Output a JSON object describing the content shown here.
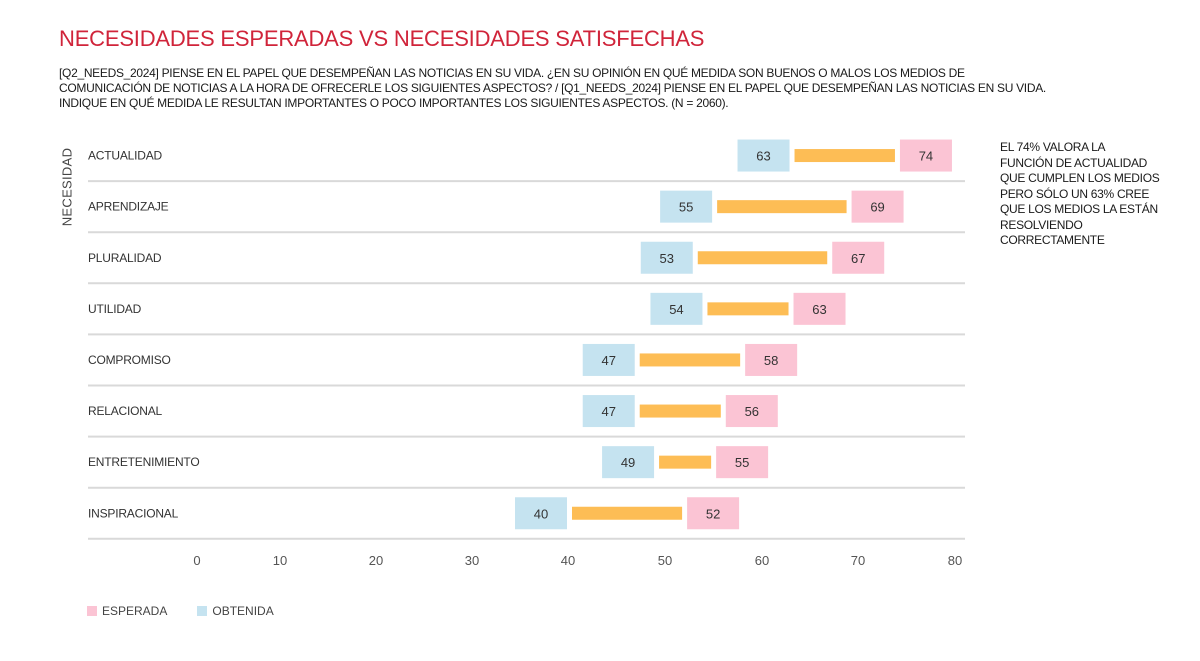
{
  "chart_data": {
    "type": "bar",
    "subtype": "dumbbell",
    "title": "NECESIDADES ESPERADAS VS NECESIDADES SATISFECHAS",
    "subtitle_lines": [
      "[Q2_NEEDS_2024] PIENSE EN EL PAPEL QUE DESEMPEÑAN LAS NOTICIAS EN SU VIDA. ¿EN SU OPINIÓN EN QUÉ MEDIDA SON BUENOS O MALOS LOS MEDIOS DE",
      "COMUNICACIÓN DE NOTICIAS A LA HORA DE OFRECERLE LOS SIGUIENTES ASPECTOS? / [Q1_NEEDS_2024] PIENSE EN EL PAPEL QUE DESEMPEÑAN LAS NOTICIAS EN SU VIDA.",
      "INDIQUE EN QUÉ MEDIDA LE RESULTAN IMPORTANTES O POCO IMPORTANTES LOS SIGUIENTES ASPECTOS. (N = 2060)."
    ],
    "ylabel": "NECESIDAD",
    "xlabel": "",
    "xlim": [
      0,
      80
    ],
    "xticks": [
      "0",
      "10",
      "20",
      "30",
      "40",
      "50",
      "60",
      "70",
      "80"
    ],
    "categories": [
      "ACTUALIDAD",
      "APRENDIZAJE",
      "PLURALIDAD",
      "UTILIDAD",
      "COMPROMISO",
      "RELACIONAL",
      "ENTRETENIMIENTO",
      "INSPIRACIONAL"
    ],
    "series": [
      {
        "name": "ESPERADA",
        "color": "#fbc4d4",
        "values": [
          74,
          69,
          67,
          63,
          58,
          56,
          55,
          52
        ]
      },
      {
        "name": "OBTENIDA",
        "color": "#c5e3f0",
        "values": [
          63,
          55,
          53,
          54,
          47,
          47,
          49,
          40
        ]
      }
    ],
    "gap_bar_color": "#fdbd55",
    "legend_position": "bottom-left",
    "grid": "horizontal row separators",
    "annotation_lines": [
      "EL 74% VALORA LA",
      "FUNCIÓN DE  ACTUALIDAD",
      "QUE CUMPLEN LOS MEDIOS",
      "PERO SÓLO UN 63% CREE",
      "QUE LOS MEDIOS LA ESTÁN",
      "RESOLVIENDO",
      "CORRECTAMENTE"
    ]
  },
  "colors": {
    "title": "#d0243a",
    "separator": "#d9d9d9"
  }
}
